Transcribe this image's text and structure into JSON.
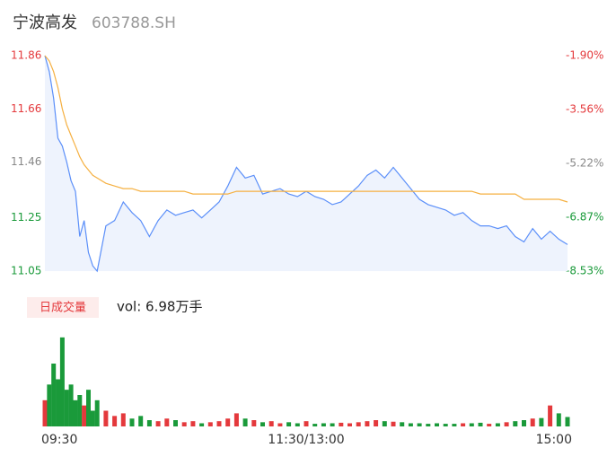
{
  "header": {
    "name": "宁波高发",
    "code": "603788.SH"
  },
  "chart_data": {
    "type": "intraday",
    "ylim": [
      11.05,
      11.86
    ],
    "yticks": [
      11.86,
      11.66,
      11.46,
      11.25,
      11.05
    ],
    "ytick_colors": [
      "#e4393c",
      "#e4393c",
      "#888888",
      "#1a9a3a",
      "#1a9a3a"
    ],
    "y2lim": [
      -8.53,
      -1.9
    ],
    "y2ticks": [
      {
        "value": -1.9,
        "label": "-1.90%"
      },
      {
        "value": -3.56,
        "label": "-3.56%"
      },
      {
        "value": -5.22,
        "label": "-5.22%"
      },
      {
        "value": -6.87,
        "label": "-6.87%"
      },
      {
        "value": -8.53,
        "label": "-8.53%"
      }
    ],
    "y2tick_colors": [
      "#e4393c",
      "#e4393c",
      "#888888",
      "#1a9a3a",
      "#1a9a3a"
    ],
    "xlim": [
      0,
      240
    ],
    "xticks": [
      {
        "value": 0,
        "label": "09:30"
      },
      {
        "value": 120,
        "label": "11:30/13:00"
      },
      {
        "value": 240,
        "label": "15:00"
      }
    ],
    "x": [
      0,
      2,
      4,
      6,
      8,
      10,
      12,
      14,
      16,
      18,
      20,
      22,
      24,
      28,
      32,
      36,
      40,
      44,
      48,
      52,
      56,
      60,
      64,
      68,
      72,
      76,
      80,
      84,
      88,
      92,
      96,
      100,
      104,
      108,
      112,
      116,
      120,
      124,
      128,
      132,
      136,
      140,
      144,
      148,
      152,
      156,
      160,
      164,
      168,
      172,
      176,
      180,
      184,
      188,
      192,
      196,
      200,
      204,
      208,
      212,
      216,
      220,
      224,
      228,
      232,
      236,
      240
    ],
    "series": [
      {
        "name": "price",
        "color": "#5b8ff9",
        "fill": "#eef3fd",
        "values": [
          11.86,
          11.8,
          11.7,
          11.55,
          11.52,
          11.46,
          11.39,
          11.35,
          11.18,
          11.24,
          11.12,
          11.07,
          11.05,
          11.22,
          11.24,
          11.31,
          11.27,
          11.24,
          11.18,
          11.24,
          11.28,
          11.26,
          11.27,
          11.28,
          11.25,
          11.28,
          11.31,
          11.37,
          11.44,
          11.4,
          11.41,
          11.34,
          11.35,
          11.36,
          11.34,
          11.33,
          11.35,
          11.33,
          11.32,
          11.3,
          11.31,
          11.34,
          11.37,
          11.41,
          11.43,
          11.4,
          11.44,
          11.4,
          11.36,
          11.32,
          11.3,
          11.29,
          11.28,
          11.26,
          11.27,
          11.24,
          11.22,
          11.22,
          11.21,
          11.22,
          11.18,
          11.16,
          11.21,
          11.17,
          11.2,
          11.17,
          11.15
        ]
      },
      {
        "name": "average",
        "color": "#f5b041",
        "values": [
          11.86,
          11.84,
          11.8,
          11.74,
          11.66,
          11.6,
          11.56,
          11.52,
          11.48,
          11.45,
          11.43,
          11.41,
          11.4,
          11.38,
          11.37,
          11.36,
          11.36,
          11.35,
          11.35,
          11.35,
          11.35,
          11.35,
          11.35,
          11.34,
          11.34,
          11.34,
          11.34,
          11.34,
          11.35,
          11.35,
          11.35,
          11.35,
          11.35,
          11.35,
          11.35,
          11.35,
          11.35,
          11.35,
          11.35,
          11.35,
          11.35,
          11.35,
          11.35,
          11.35,
          11.35,
          11.35,
          11.35,
          11.35,
          11.35,
          11.35,
          11.35,
          11.35,
          11.35,
          11.35,
          11.35,
          11.35,
          11.34,
          11.34,
          11.34,
          11.34,
          11.34,
          11.32,
          11.32,
          11.32,
          11.32,
          11.32,
          11.31
        ]
      }
    ],
    "volume": {
      "label": "日成交量",
      "summary": "vol: 6.98万手",
      "ylim": [
        0,
        1800
      ],
      "up_color": "#e4393c",
      "down_color": "#1a9a3a",
      "values": [
        500,
        800,
        1200,
        900,
        1700,
        700,
        800,
        500,
        600,
        400,
        700,
        300,
        500,
        300,
        200,
        250,
        150,
        200,
        120,
        100,
        150,
        120,
        80,
        100,
        60,
        80,
        100,
        150,
        250,
        150,
        120,
        80,
        100,
        60,
        80,
        60,
        100,
        50,
        60,
        60,
        70,
        60,
        80,
        100,
        120,
        100,
        90,
        80,
        60,
        60,
        50,
        60,
        50,
        50,
        60,
        60,
        70,
        50,
        60,
        80,
        100,
        120,
        150,
        160,
        400,
        250,
        180
      ]
    }
  }
}
